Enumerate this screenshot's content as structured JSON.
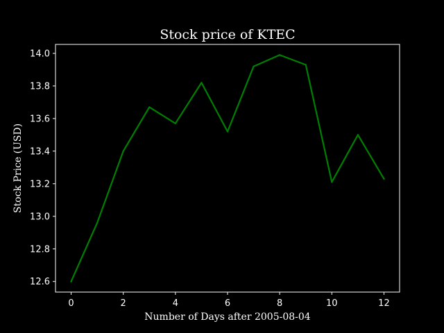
{
  "chart_data": {
    "type": "line",
    "title": "Stock price of KTEC",
    "xlabel": "Number of Days after 2005-08-04",
    "ylabel": "Stock Price (USD)",
    "x": [
      0,
      1,
      2,
      3,
      4,
      5,
      6,
      7,
      8,
      9,
      10,
      11,
      12
    ],
    "series": [
      {
        "values": [
          12.6,
          12.96,
          13.4,
          13.67,
          13.57,
          13.82,
          13.52,
          13.92,
          13.99,
          13.93,
          13.21,
          13.5,
          13.23
        ],
        "color": "#008000"
      }
    ],
    "xlim": [
      -0.6,
      12.6
    ],
    "ylim": [
      12.535,
      14.055
    ],
    "xticks": [
      0,
      2,
      4,
      6,
      8,
      10,
      12
    ],
    "xtick_labels": [
      "0",
      "2",
      "4",
      "6",
      "8",
      "10",
      "12"
    ],
    "yticks": [
      12.6,
      12.8,
      13.0,
      13.2,
      13.4,
      13.6,
      13.8,
      14.0
    ],
    "ytick_labels": [
      "12.6",
      "12.8",
      "13.0",
      "13.2",
      "13.4",
      "13.6",
      "13.8",
      "14.0"
    ],
    "grid": false,
    "background": "#000000",
    "axes_color": "#ffffff"
  }
}
